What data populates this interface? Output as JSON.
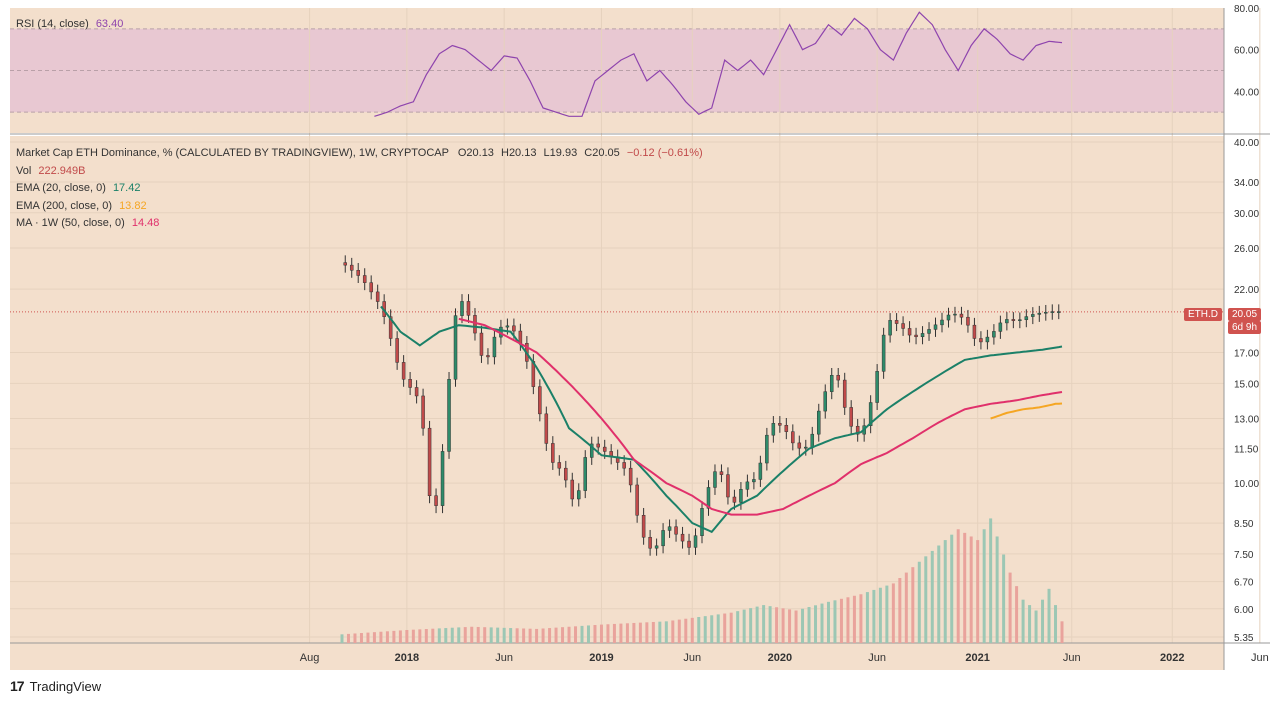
{
  "colors": {
    "background": "#f3dfcc",
    "rsi_band": "#e8c8d2",
    "up_candle": "#2e8b6a",
    "down_candle": "#c14a4a",
    "ema20": "#1b8068",
    "ema200": "#f5a623",
    "ma50": "#e0306b",
    "rsi_line": "#8e44ad",
    "price_tag": "#d0534f"
  },
  "rsi_legend": {
    "label": "RSI (14, close)",
    "value": "63.40"
  },
  "main_legend": {
    "title": "Market Cap ETH Dominance, % (CALCULATED BY TRADINGVIEW), 1W, CRYPTOCAP",
    "o": "O20.13",
    "h": "H20.13",
    "l": "L19.93",
    "c": "C20.05",
    "chg": "−0.12 (−0.61%)",
    "vol_label": "Vol",
    "vol_value": "222.949B",
    "ema20_label": "EMA (20, close, 0)",
    "ema20_value": "17.42",
    "ema200_label": "EMA (200, close, 0)",
    "ema200_value": "13.82",
    "ma50_label": "MA · 1W (50, close, 0)",
    "ma50_value": "14.48"
  },
  "price_tag": {
    "symbol": "ETH.D",
    "value": "20.05",
    "countdown": "6d 9h"
  },
  "footer": {
    "brand": "TradingView",
    "logo_text": "17"
  },
  "chart_data": {
    "type": "line",
    "title": "Market Cap ETH Dominance, % (CALCULATED BY TRADINGVIEW), 1W, CRYPTOCAP",
    "x_ticks": [
      "Aug",
      "2018",
      "Jun",
      "2019",
      "Jun",
      "2020",
      "Jun",
      "2021",
      "Jun",
      "2022",
      "Jun"
    ],
    "y_ticks_main": [
      "40.00",
      "34.00",
      "30.00",
      "26.00",
      "22.00",
      "20.05",
      "17.00",
      "15.00",
      "13.00",
      "11.50",
      "10.00",
      "8.50",
      "7.50",
      "6.70",
      "6.00",
      "5.35"
    ],
    "y_ticks_rsi": [
      "80.00",
      "60.00",
      "40.00"
    ],
    "y_scale": "log",
    "ylim": [
      5.35,
      40
    ],
    "rsi_ylim": [
      20,
      80
    ],
    "rsi_band": [
      30,
      70
    ],
    "last_price": 20.05,
    "series": [
      {
        "name": "ETH.D",
        "x_index": [
          0,
          6,
          12,
          18,
          24,
          28,
          32,
          34,
          36,
          40,
          44,
          48,
          52,
          56,
          60,
          64,
          68,
          72,
          76,
          80,
          84,
          88,
          92,
          96,
          100,
          104,
          108,
          112,
          116,
          120,
          124,
          128,
          132,
          136,
          140,
          144,
          148,
          152,
          156,
          160,
          164,
          168,
          172,
          176,
          180,
          184,
          188,
          192,
          196,
          198,
          200,
          204,
          208,
          212,
          216,
          220,
          222
        ],
        "values": [
          24.5,
          23.0,
          20.5,
          15.5,
          14.0,
          8.0,
          12.5,
          18.0,
          21.5,
          19.2,
          16.0,
          18.8,
          19.0,
          17.2,
          14.0,
          11.0,
          10.5,
          9.0,
          11.8,
          11.5,
          11.0,
          10.5,
          8.2,
          7.5,
          8.5,
          8.0,
          7.6,
          9.5,
          10.8,
          9.0,
          10.0,
          10.2,
          12.8,
          12.6,
          11.5,
          11.6,
          14.0,
          16.0,
          12.8,
          12.0,
          14.5,
          19.5,
          19.0,
          18.0,
          18.5,
          19.2,
          20.0,
          19.5,
          17.5,
          18.0,
          18.2,
          19.5,
          19.3,
          19.8,
          20.0,
          20.1,
          20.05
        ]
      },
      {
        "name": "EMA (20, close, 0)",
        "x_index": [
          12,
          18,
          24,
          30,
          36,
          44,
          52,
          60,
          70,
          80,
          90,
          100,
          108,
          114,
          120,
          128,
          136,
          144,
          152,
          160,
          168,
          176,
          184,
          192,
          200,
          208,
          216,
          222
        ],
        "values": [
          20.5,
          18.5,
          17.5,
          18.5,
          19.0,
          18.8,
          18.5,
          16.0,
          12.5,
          11.2,
          11.0,
          9.5,
          8.5,
          8.2,
          9.0,
          9.5,
          10.5,
          11.5,
          12.0,
          12.3,
          13.5,
          14.5,
          15.5,
          16.5,
          16.8,
          17.0,
          17.2,
          17.42
        ]
      },
      {
        "name": "EMA (200, close, 0)",
        "x_index": [
          200,
          205,
          210,
          215,
          220,
          222
        ],
        "values": [
          13.0,
          13.3,
          13.5,
          13.6,
          13.8,
          13.82
        ]
      },
      {
        "name": "MA · 1W (50, close, 0)",
        "x_index": [
          36,
          44,
          52,
          60,
          70,
          80,
          90,
          100,
          108,
          114,
          120,
          128,
          136,
          144,
          152,
          160,
          168,
          176,
          184,
          192,
          200,
          208,
          216,
          222
        ],
        "values": [
          19.5,
          19.0,
          18.0,
          17.0,
          15.0,
          13.0,
          11.0,
          10.0,
          9.5,
          9.0,
          8.8,
          8.8,
          9.0,
          9.5,
          10.0,
          10.8,
          11.3,
          12.0,
          12.8,
          13.5,
          13.8,
          14.0,
          14.3,
          14.48
        ]
      }
    ],
    "rsi": {
      "name": "RSI (14, close)",
      "x_index": [
        10,
        14,
        18,
        22,
        26,
        30,
        34,
        38,
        42,
        46,
        50,
        54,
        58,
        62,
        66,
        70,
        74,
        78,
        82,
        86,
        90,
        94,
        98,
        102,
        106,
        110,
        114,
        118,
        122,
        126,
        130,
        134,
        138,
        142,
        146,
        150,
        154,
        158,
        162,
        166,
        170,
        174,
        178,
        182,
        186,
        190,
        194,
        198,
        202,
        206,
        210,
        214,
        218,
        222
      ],
      "values": [
        28,
        30,
        33,
        35,
        48,
        58,
        62,
        60,
        55,
        50,
        57,
        56,
        45,
        32,
        30,
        28,
        28,
        45,
        50,
        55,
        58,
        45,
        50,
        43,
        35,
        29,
        32,
        55,
        50,
        55,
        48,
        60,
        72,
        60,
        63,
        72,
        67,
        75,
        70,
        60,
        55,
        68,
        78,
        72,
        60,
        50,
        62,
        70,
        65,
        58,
        55,
        62,
        64,
        63.4
      ]
    },
    "volume": {
      "name": "Vol",
      "x_index": [
        0,
        20,
        40,
        60,
        80,
        100,
        120,
        130,
        140,
        150,
        160,
        170,
        180,
        190,
        196,
        200,
        206,
        210,
        214,
        218,
        222
      ],
      "values": [
        0.8,
        1.2,
        1.5,
        1.3,
        1.7,
        2.0,
        2.8,
        3.5,
        3.0,
        3.8,
        4.5,
        5.5,
        8.0,
        10.5,
        9.5,
        11.5,
        6.5,
        4.0,
        3.0,
        5.0,
        2.0
      ]
    }
  }
}
